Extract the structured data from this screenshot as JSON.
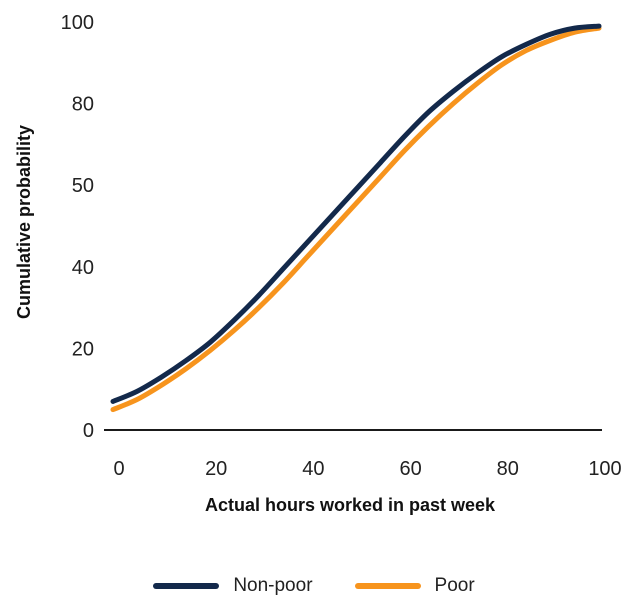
{
  "chart_data": {
    "type": "line",
    "xlabel": "Actual hours worked in past week",
    "ylabel": "Cumulative probability",
    "xlim": [
      0,
      100
    ],
    "ylim": [
      0,
      100
    ],
    "x_ticks": [
      "0",
      "20",
      "40",
      "60",
      "80",
      "100"
    ],
    "y_ticks": [
      "0",
      "20",
      "40",
      "50",
      "80",
      "100"
    ],
    "grid": false,
    "legend_position": "bottom-center",
    "series": [
      {
        "name": "Non-poor",
        "color": "#13294b",
        "x": [
          0,
          5,
          10,
          15,
          20,
          25,
          30,
          35,
          40,
          45,
          50,
          55,
          60,
          65,
          70,
          75,
          80,
          85,
          90,
          95,
          100
        ],
        "y": [
          7,
          9.5,
          13,
          17,
          21.5,
          27,
          33,
          39.5,
          46,
          52.5,
          59,
          65.5,
          72,
          78,
          83,
          87.5,
          91.5,
          94.5,
          97,
          98.5,
          99
        ]
      },
      {
        "name": "Poor",
        "color": "#f7941d",
        "x": [
          0,
          5,
          10,
          15,
          20,
          25,
          30,
          35,
          40,
          45,
          50,
          55,
          60,
          65,
          70,
          75,
          80,
          85,
          90,
          95,
          100
        ],
        "y": [
          5,
          7.5,
          11,
          15,
          19.5,
          24.5,
          30,
          36,
          42.5,
          49,
          55.5,
          62,
          68.5,
          74.5,
          80,
          85,
          89.5,
          93,
          95.5,
          97.5,
          98.5
        ]
      }
    ]
  }
}
